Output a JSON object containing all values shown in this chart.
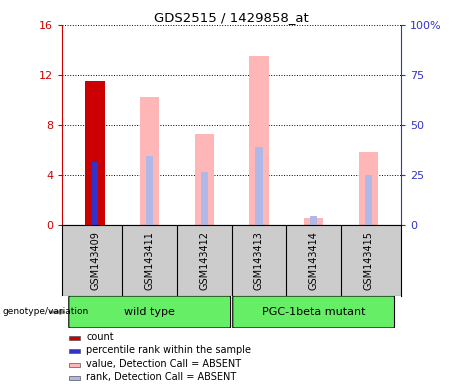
{
  "title": "GDS2515 / 1429858_at",
  "samples": [
    "GSM143409",
    "GSM143411",
    "GSM143412",
    "GSM143413",
    "GSM143414",
    "GSM143415"
  ],
  "count_values": [
    11.5,
    null,
    null,
    null,
    null,
    null
  ],
  "percentile_values": [
    5.0,
    null,
    null,
    null,
    null,
    null
  ],
  "absent_value_bars": [
    null,
    10.2,
    7.3,
    13.5,
    0.5,
    5.8
  ],
  "absent_rank_bars": [
    null,
    5.5,
    4.2,
    6.2,
    0.7,
    4.0
  ],
  "ylim_left": [
    0,
    16
  ],
  "ylim_right": [
    0,
    100
  ],
  "yticks_left": [
    0,
    4,
    8,
    12,
    16
  ],
  "yticks_right": [
    0,
    25,
    50,
    75,
    100
  ],
  "yticklabels_right": [
    "0",
    "25",
    "50",
    "75",
    "100%"
  ],
  "bar_width": 0.35,
  "count_color": "#cc0000",
  "percentile_color": "#3333cc",
  "absent_value_color": "#ffb6b6",
  "absent_rank_color": "#b0b8e8",
  "legend_items": [
    {
      "color": "#cc0000",
      "label": "count"
    },
    {
      "color": "#3333cc",
      "label": "percentile rank within the sample"
    },
    {
      "color": "#ffb6b6",
      "label": "value, Detection Call = ABSENT"
    },
    {
      "color": "#b0b8e8",
      "label": "rank, Detection Call = ABSENT"
    }
  ],
  "background_color": "#ffffff",
  "plot_bg_color": "#ffffff",
  "sample_label_bg": "#cccccc",
  "group_wild_color": "#66ee66",
  "group_mutant_color": "#66ee66",
  "axis_color_left": "#cc0000",
  "axis_color_right": "#3333cc",
  "genotype_label": "genotype/variation",
  "group_labels": [
    "wild type",
    "PGC-1beta mutant"
  ],
  "group_ranges": [
    [
      0,
      2
    ],
    [
      3,
      5
    ]
  ]
}
